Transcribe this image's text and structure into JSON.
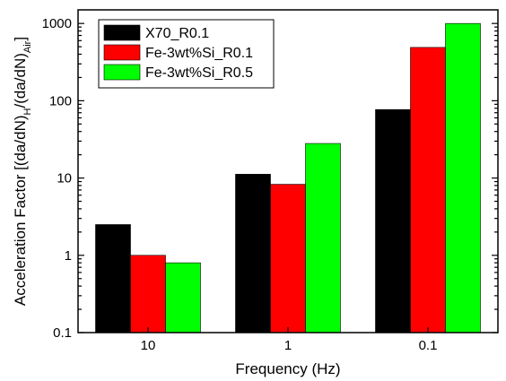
{
  "chart_data": {
    "type": "bar",
    "categories": [
      "10",
      "1",
      "0.1"
    ],
    "series": [
      {
        "name": "X70_R0.1",
        "color": "#000000",
        "values": [
          2.5,
          11.2,
          77
        ]
      },
      {
        "name": "Fe-3wt%Si_R0.1",
        "color": "#ff0000",
        "values": [
          1.0,
          8.3,
          490
        ]
      },
      {
        "name": "Fe-3wt%Si_R0.5",
        "color": "#00ff00",
        "values": [
          0.8,
          28,
          1000
        ]
      }
    ],
    "xlabel": "Frequency (Hz)",
    "ylabel_parts": {
      "main": "Acceleration Factor [(da/dN)",
      "sub_h": "H",
      "mid": "/(da/dN)",
      "sub_air": "Air",
      "end": "]"
    },
    "yscale": "log",
    "ylim": [
      0.1,
      1500
    ],
    "yticks": [
      0.1,
      1,
      10,
      100,
      1000
    ],
    "ytick_labels": [
      "0.1",
      "1",
      "10",
      "100",
      "1000"
    ],
    "legend_position": "top-left",
    "grid": false
  }
}
